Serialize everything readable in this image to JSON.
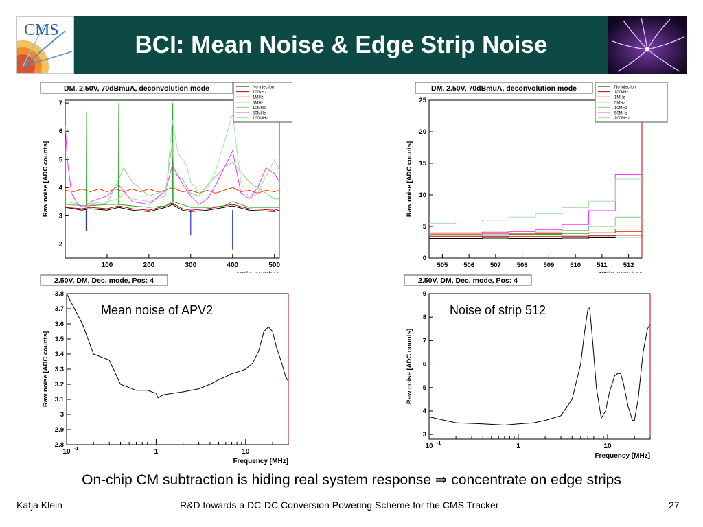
{
  "slide": {
    "title": "BCI: Mean Noise & Edge Strip Noise",
    "logo_text": "CMS",
    "conclusion_before": "On-chip CM subtraction is hiding real system response ",
    "conclusion_arrow": "⇒",
    "conclusion_after": " concentrate on edge strips",
    "footer_author": "Katja Klein",
    "footer_center": "R&D towards a DC-DC Conversion Powering Scheme for the CMS Tracker",
    "page_number": "27"
  },
  "colors": {
    "header_bg": "#0d4a46",
    "no_injection": "#000000",
    "100kHz": "#cc0000",
    "1MHz": "#ff3300",
    "5MHz": "#22aa22",
    "10MHz": "#88cc88",
    "50MHz": "#ff33ff",
    "100MHz": "#aaddaa"
  },
  "chart_data": [
    {
      "type": "line",
      "panel": "top-left",
      "title": "DM, 2.50V, 70dBmuA, deconvolution mode",
      "xlabel": "Strip number",
      "ylabel": "Raw noise [ADC counts]",
      "xlim": [
        0,
        512
      ],
      "ylim": [
        1.5,
        7.1
      ],
      "x_ticks": [
        "100",
        "200",
        "300",
        "400",
        "500"
      ],
      "y_ticks": [
        "2",
        "3",
        "4",
        "5",
        "6",
        "7"
      ],
      "legend": [
        "No injection",
        "100kHz",
        "1MHz",
        "5MHz",
        "10MHz",
        "50MHz",
        "100MHz"
      ],
      "legend_position": "top-right",
      "series": [
        {
          "name": "No injection",
          "x": [
            0,
            40,
            60,
            100,
            128,
            160,
            200,
            240,
            256,
            280,
            300,
            340,
            380,
            400,
            440,
            500,
            512
          ],
          "y": [
            3.3,
            3.2,
            3.25,
            3.2,
            3.3,
            3.2,
            3.15,
            3.3,
            3.4,
            3.2,
            3.15,
            3.2,
            3.3,
            3.35,
            3.2,
            3.15,
            3.2
          ]
        },
        {
          "name": "100kHz",
          "x": [
            0,
            40,
            60,
            100,
            128,
            160,
            200,
            240,
            256,
            280,
            300,
            340,
            380,
            400,
            440,
            500,
            512
          ],
          "y": [
            3.3,
            3.25,
            3.3,
            3.25,
            3.35,
            3.25,
            3.2,
            3.35,
            3.45,
            3.25,
            3.2,
            3.25,
            3.35,
            3.4,
            3.25,
            3.2,
            3.25
          ]
        },
        {
          "name": "1MHz",
          "x": [
            0,
            20,
            40,
            60,
            80,
            100,
            120,
            140,
            160,
            180,
            200,
            220,
            240,
            256,
            280,
            300,
            320,
            340,
            360,
            380,
            400,
            420,
            440,
            460,
            480,
            500,
            512
          ],
          "y": [
            3.9,
            3.85,
            3.95,
            3.85,
            3.95,
            3.85,
            3.95,
            3.85,
            3.95,
            3.85,
            3.95,
            3.85,
            3.9,
            4.0,
            3.85,
            3.9,
            3.8,
            3.9,
            3.8,
            3.9,
            4.0,
            3.85,
            3.9,
            3.8,
            3.9,
            3.85,
            3.9
          ]
        },
        {
          "name": "5MHz",
          "x": [
            0,
            50,
            51,
            52,
            100,
            127,
            128,
            129,
            160,
            200,
            240,
            256,
            257,
            258,
            300,
            340,
            380,
            400,
            440,
            500,
            512
          ],
          "y": [
            3.4,
            3.35,
            6.7,
            3.35,
            3.4,
            3.4,
            7.0,
            3.4,
            3.35,
            3.3,
            3.35,
            3.5,
            7.0,
            3.5,
            3.3,
            3.3,
            3.35,
            3.5,
            3.3,
            3.3,
            3.3
          ]
        },
        {
          "name": "10MHz",
          "x": [
            0,
            40,
            80,
            100,
            128,
            140,
            160,
            200,
            240,
            256,
            260,
            280,
            300,
            320,
            340,
            380,
            400,
            440,
            480,
            500,
            512
          ],
          "y": [
            3.4,
            3.35,
            3.4,
            3.45,
            4.3,
            4.7,
            4.2,
            3.7,
            3.9,
            5.6,
            4.5,
            4.3,
            3.8,
            3.7,
            4.1,
            4.7,
            4.9,
            4.2,
            3.8,
            3.6,
            3.6
          ]
        },
        {
          "name": "50MHz",
          "x": [
            0,
            5,
            15,
            30,
            45,
            60,
            80,
            100,
            128,
            160,
            200,
            240,
            256,
            270,
            290,
            300,
            320,
            340,
            360,
            380,
            400,
            420,
            440,
            460,
            480,
            500,
            512
          ],
          "y": [
            6.2,
            5.0,
            3.8,
            3.4,
            3.3,
            3.5,
            3.6,
            3.7,
            4.1,
            3.5,
            3.4,
            3.9,
            4.8,
            4.4,
            3.9,
            3.7,
            3.4,
            3.6,
            4.1,
            4.7,
            5.3,
            3.8,
            3.6,
            4.0,
            4.7,
            4.5,
            4.2
          ]
        },
        {
          "name": "100MHz",
          "x": [
            0,
            40,
            100,
            128,
            140,
            160,
            200,
            240,
            256,
            270,
            290,
            300,
            320,
            340,
            360,
            380,
            400,
            420,
            440,
            460,
            480,
            500,
            512
          ],
          "y": [
            3.5,
            3.4,
            3.5,
            3.6,
            3.8,
            3.6,
            3.5,
            3.7,
            6.4,
            5.2,
            4.8,
            4.2,
            3.8,
            4.0,
            4.6,
            5.6,
            6.6,
            4.2,
            3.6,
            3.8,
            4.4,
            5.0,
            4.6
          ]
        }
      ]
    },
    {
      "type": "line",
      "panel": "top-right",
      "title": "DM, 2.50V, 70dBmuA, deconvolution mode",
      "xlabel": "Strip number",
      "ylabel": "Raw noise [ADC counts]",
      "xlim": [
        504.5,
        512.5
      ],
      "ylim": [
        0,
        25
      ],
      "x_ticks": [
        "505",
        "506",
        "507",
        "508",
        "509",
        "510",
        "511",
        "512"
      ],
      "y_ticks": [
        "0",
        "5",
        "10",
        "15",
        "20",
        "25"
      ],
      "legend": [
        "No injection",
        "100kHz",
        "1MHz",
        "5MHz",
        "10MHz",
        "50MHz",
        "100MHz"
      ],
      "legend_position": "top-right",
      "series": [
        {
          "name": "No injection",
          "strips": [
            505,
            506,
            507,
            508,
            509,
            510,
            511,
            512
          ],
          "values": [
            3.1,
            3.1,
            3.15,
            3.1,
            3.1,
            3.15,
            3.2,
            3.3
          ]
        },
        {
          "name": "100kHz",
          "strips": [
            505,
            506,
            507,
            508,
            509,
            510,
            511,
            512
          ],
          "values": [
            3.4,
            3.4,
            3.45,
            3.4,
            3.4,
            3.45,
            3.5,
            3.6
          ]
        },
        {
          "name": "1MHz",
          "strips": [
            505,
            506,
            507,
            508,
            509,
            510,
            511,
            512
          ],
          "values": [
            3.8,
            3.8,
            3.85,
            3.8,
            3.85,
            3.9,
            4.0,
            4.2
          ]
        },
        {
          "name": "5MHz",
          "strips": [
            505,
            506,
            507,
            508,
            509,
            510,
            511,
            512
          ],
          "values": [
            3.6,
            3.6,
            3.65,
            3.7,
            3.75,
            3.9,
            4.0,
            4.6
          ]
        },
        {
          "name": "10MHz",
          "strips": [
            505,
            506,
            507,
            508,
            509,
            510,
            511,
            512
          ],
          "values": [
            3.7,
            3.7,
            3.8,
            3.9,
            4.1,
            4.4,
            5.0,
            6.5
          ]
        },
        {
          "name": "50MHz",
          "strips": [
            505,
            506,
            507,
            508,
            509,
            510,
            511,
            512
          ],
          "values": [
            4.0,
            4.0,
            4.1,
            4.2,
            4.5,
            5.3,
            7.5,
            13.2
          ]
        },
        {
          "name": "100MHz",
          "strips": [
            505,
            506,
            507,
            508,
            509,
            510,
            511,
            512
          ],
          "values": [
            5.5,
            5.7,
            6.0,
            6.5,
            7.0,
            8.0,
            9.0,
            12.5
          ]
        }
      ]
    },
    {
      "type": "line",
      "panel": "bottom-left",
      "title": "2.50V, DM, Dec. mode, Pos: 4",
      "annotation": "Mean noise of APV2",
      "xlabel": "Frequency [MHz]",
      "ylabel": "Raw noise [ADC counts]",
      "x_scale": "log",
      "xlim": [
        0.1,
        30
      ],
      "ylim": [
        2.8,
        3.8
      ],
      "x_ticks": [
        "10",
        "1",
        "10"
      ],
      "x_tick_exponent": "-1",
      "y_ticks": [
        "2.8",
        "2.9",
        "3",
        "3.1",
        "3.2",
        "3.3",
        "3.4",
        "3.5",
        "3.6",
        "3.7",
        "3.8"
      ],
      "series": [
        {
          "x": [
            0.1,
            0.15,
            0.2,
            0.3,
            0.4,
            0.6,
            0.8,
            1.0,
            1.05,
            1.2,
            1.5,
            2,
            3,
            4,
            5,
            6,
            7,
            8,
            9,
            10,
            12,
            14,
            16,
            18,
            20,
            22,
            25,
            28,
            30
          ],
          "y": [
            3.8,
            3.6,
            3.4,
            3.36,
            3.2,
            3.16,
            3.16,
            3.14,
            3.11,
            3.13,
            3.14,
            3.15,
            3.17,
            3.2,
            3.23,
            3.25,
            3.27,
            3.28,
            3.29,
            3.3,
            3.34,
            3.42,
            3.55,
            3.58,
            3.55,
            3.45,
            3.35,
            3.25,
            3.22
          ]
        }
      ]
    },
    {
      "type": "line",
      "panel": "bottom-right",
      "title": "2.50V, DM, Dec. mode, Pos: 4",
      "annotation": "Noise of strip 512",
      "xlabel": "Frequency [MHz]",
      "ylabel": "Raw noise [ADC counts]",
      "x_scale": "log",
      "xlim": [
        0.1,
        30
      ],
      "ylim": [
        2.8,
        9
      ],
      "x_ticks": [
        "10",
        "1",
        "10"
      ],
      "x_tick_exponent": "-1",
      "y_ticks": [
        "3",
        "4",
        "5",
        "6",
        "7",
        "8",
        "9"
      ],
      "series": [
        {
          "x": [
            0.1,
            0.2,
            0.4,
            0.7,
            1,
            1.5,
            2,
            3,
            4,
            5,
            5.5,
            6,
            6.3,
            6.8,
            7.5,
            8.5,
            9.5,
            10.5,
            12,
            13,
            14,
            15,
            17,
            19,
            20,
            22,
            25,
            28,
            30
          ],
          "y": [
            3.75,
            3.5,
            3.45,
            3.4,
            3.45,
            3.5,
            3.6,
            3.8,
            4.5,
            6.0,
            7.3,
            8.3,
            8.4,
            7.0,
            5.0,
            3.7,
            4.0,
            4.8,
            5.5,
            5.6,
            5.6,
            5.2,
            4.2,
            3.6,
            3.6,
            4.5,
            6.5,
            7.5,
            7.7
          ]
        }
      ]
    }
  ]
}
